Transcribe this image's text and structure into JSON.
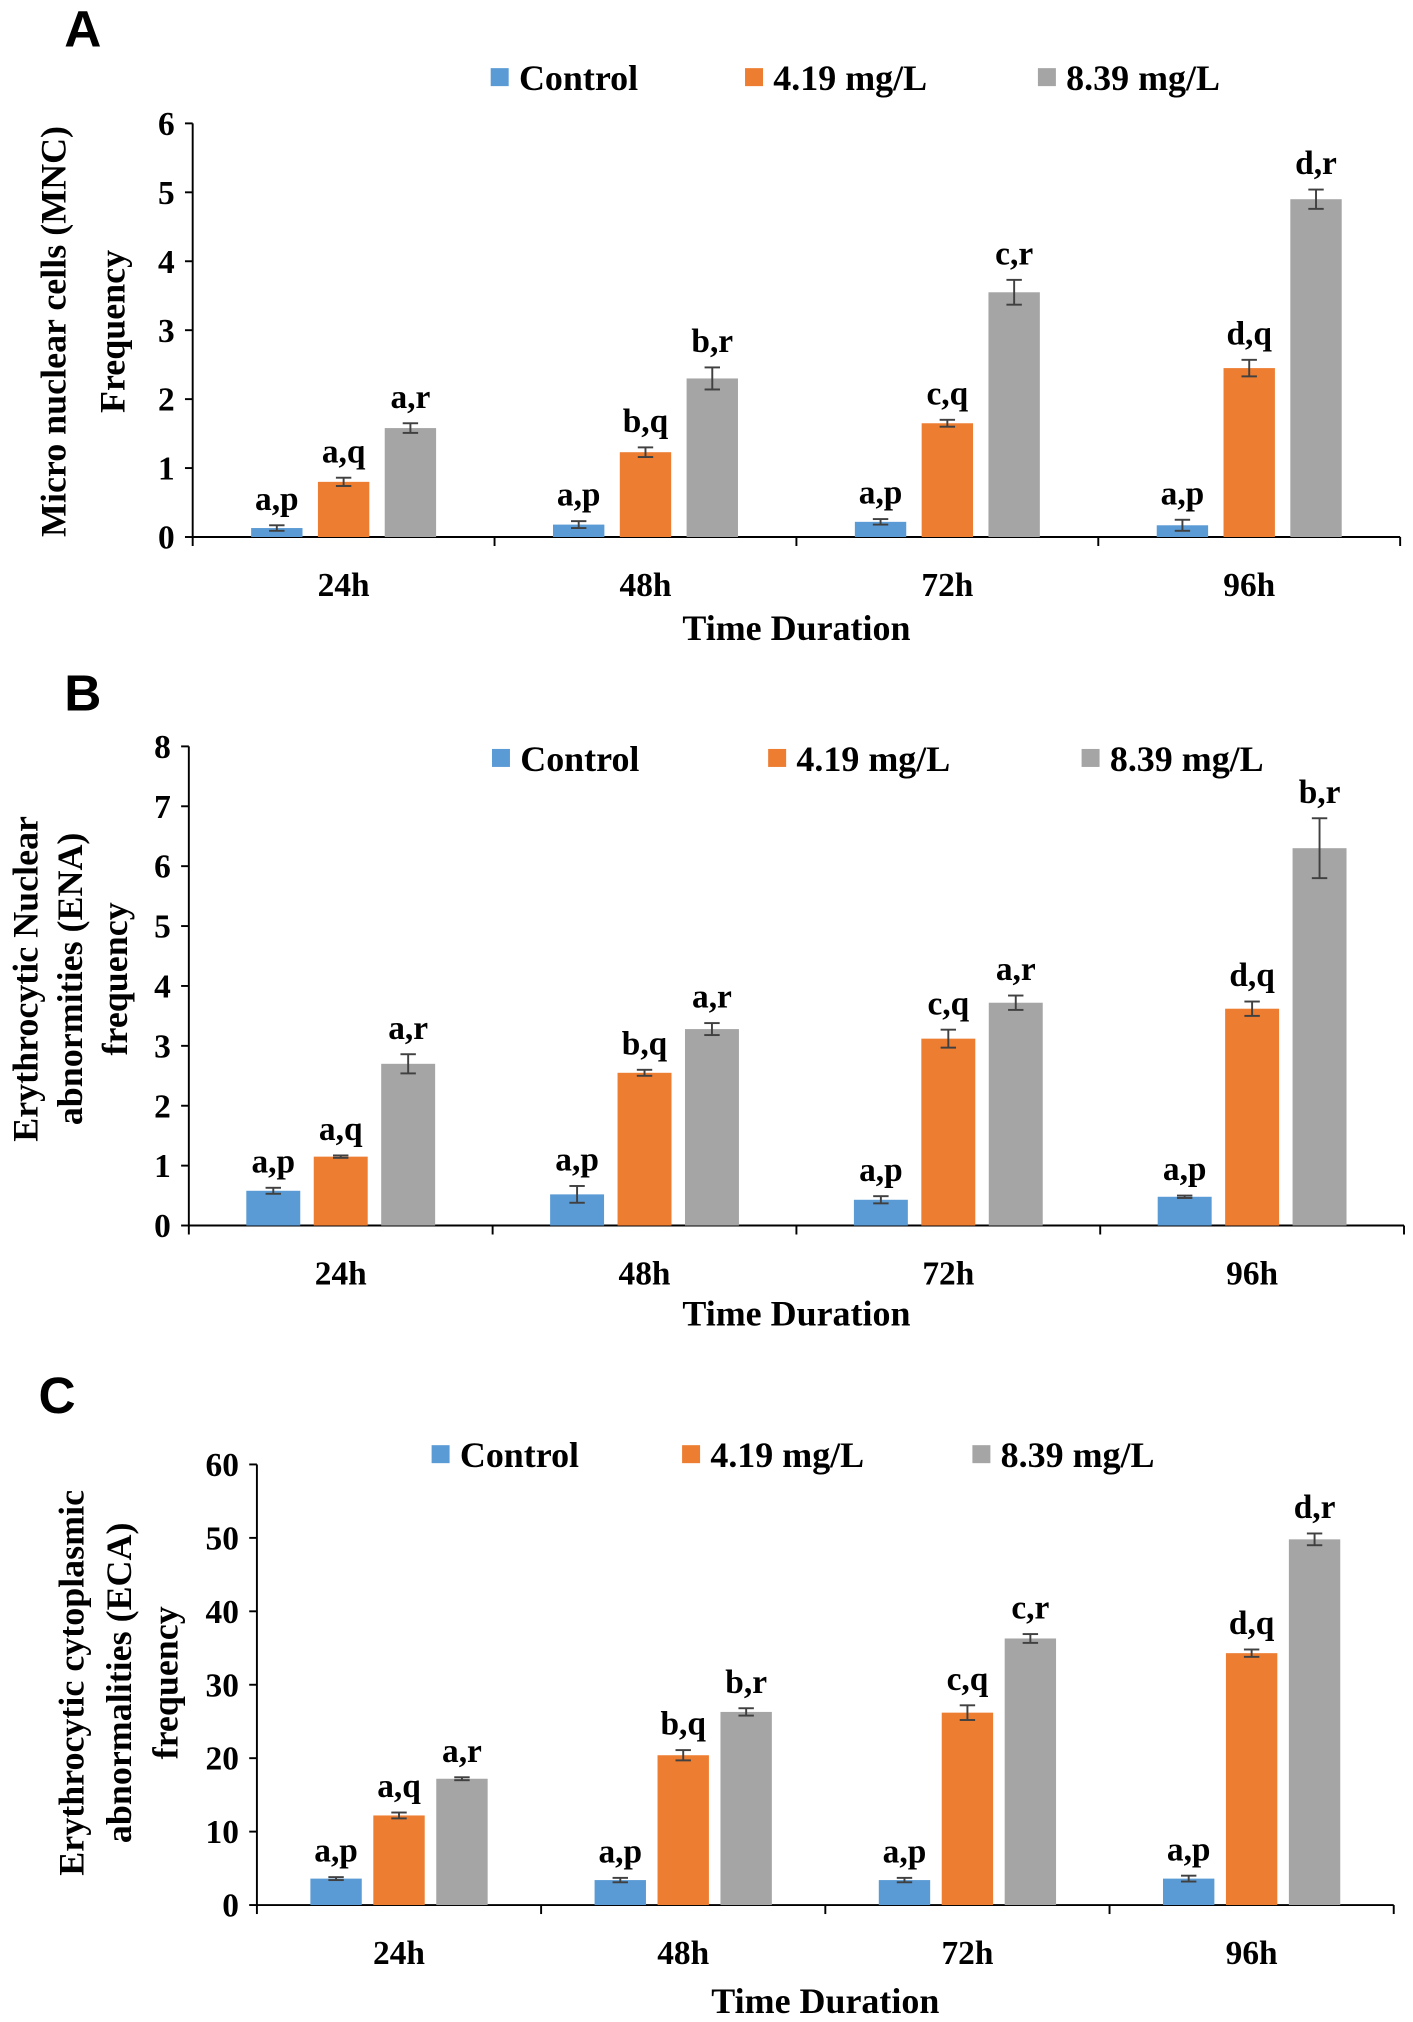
{
  "legend_colors": {
    "Control": "#5b9bd5",
    "4.19 mg/L": "#ed7d31",
    "8.39 mg/L": "#a5a5a5"
  },
  "chart_data": [
    {
      "panel": "A",
      "type": "bar",
      "categories": [
        "24h",
        "48h",
        "72h",
        "96h"
      ],
      "xlabel": "Time Duration",
      "ylabel": [
        "Micro nuclear cells (MNC)",
        "Frequency"
      ],
      "ylim": [
        0,
        6
      ],
      "yticks": [
        "0",
        "1",
        "2",
        "3",
        "4",
        "5",
        "6"
      ],
      "legend_position": "top",
      "series": [
        {
          "name": "Control",
          "values": [
            0.13,
            0.18,
            0.22,
            0.17
          ],
          "errors": [
            0.04,
            0.05,
            0.04,
            0.08
          ],
          "labels": [
            "a,p",
            "a,p",
            "a,p",
            "a,p"
          ]
        },
        {
          "name": "4.19 mg/L",
          "values": [
            0.8,
            1.23,
            1.65,
            2.45
          ],
          "errors": [
            0.06,
            0.07,
            0.05,
            0.12
          ],
          "labels": [
            "a,q",
            "b,q",
            "c,q",
            "d,q"
          ]
        },
        {
          "name": "8.39 mg/L",
          "values": [
            1.58,
            2.3,
            3.55,
            4.9
          ],
          "errors": [
            0.07,
            0.16,
            0.18,
            0.14
          ],
          "labels": [
            "a,r",
            "b,r",
            "c,r",
            "d,r"
          ]
        }
      ]
    },
    {
      "panel": "B",
      "type": "bar",
      "categories": [
        "24h",
        "48h",
        "72h",
        "96h"
      ],
      "xlabel": "Time Duration",
      "ylabel": [
        "Erythrocytic Nuclear",
        "abnormities (ENA)",
        "frequency"
      ],
      "ylim": [
        0,
        8
      ],
      "yticks": [
        "0",
        "1",
        "2",
        "3",
        "4",
        "5",
        "6",
        "7",
        "8"
      ],
      "legend_position": "top",
      "series": [
        {
          "name": "Control",
          "values": [
            0.58,
            0.52,
            0.43,
            0.48
          ],
          "errors": [
            0.05,
            0.14,
            0.06,
            0.02
          ],
          "labels": [
            "a,p",
            "a,p",
            "a,p",
            "a,p"
          ]
        },
        {
          "name": "4.19 mg/L",
          "values": [
            1.15,
            2.55,
            3.12,
            3.62
          ],
          "errors": [
            0.02,
            0.05,
            0.15,
            0.12
          ],
          "labels": [
            "a,q",
            "b,q",
            "c,q",
            "d,q"
          ]
        },
        {
          "name": "8.39 mg/L",
          "values": [
            2.7,
            3.28,
            3.72,
            6.3
          ],
          "errors": [
            0.16,
            0.1,
            0.12,
            0.5
          ],
          "labels": [
            "a,r",
            "a,r",
            "a,r",
            "b,r"
          ]
        }
      ]
    },
    {
      "panel": "C",
      "type": "bar",
      "categories": [
        "24h",
        "48h",
        "72h",
        "96h"
      ],
      "xlabel": "Time Duration",
      "ylabel": [
        "Erythrocytic cytoplasmic",
        "abnormalities (ECA)",
        "frequency"
      ],
      "ylim": [
        0,
        60
      ],
      "yticks": [
        "0",
        "10",
        "20",
        "30",
        "40",
        "50",
        "60"
      ],
      "legend_position": "top",
      "series": [
        {
          "name": "Control",
          "values": [
            3.6,
            3.4,
            3.4,
            3.6
          ],
          "errors": [
            0.2,
            0.3,
            0.3,
            0.4
          ],
          "labels": [
            "a,p",
            "a,p",
            "a,p",
            "a,p"
          ]
        },
        {
          "name": "4.19 mg/L",
          "values": [
            12.2,
            20.4,
            26.2,
            34.3
          ],
          "errors": [
            0.4,
            0.7,
            1.0,
            0.5
          ],
          "labels": [
            "a,q",
            "b,q",
            "c,q",
            "d,q"
          ]
        },
        {
          "name": "8.39 mg/L",
          "values": [
            17.2,
            26.3,
            36.3,
            49.8
          ],
          "errors": [
            0.2,
            0.5,
            0.6,
            0.8
          ],
          "labels": [
            "a,r",
            "b,r",
            "c,r",
            "d,r"
          ]
        }
      ]
    }
  ]
}
